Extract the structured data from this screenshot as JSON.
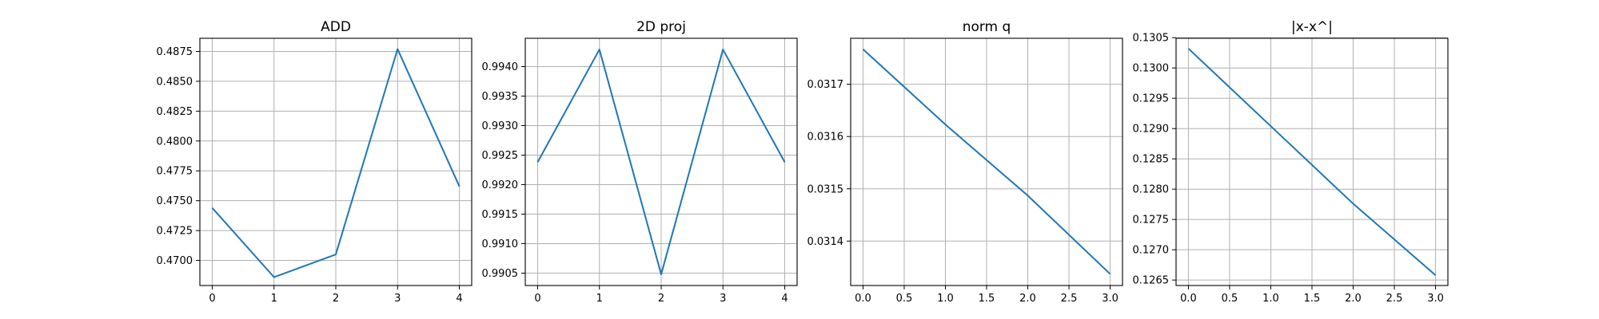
{
  "chart_data": [
    {
      "type": "line",
      "title": "ADD",
      "xlabel": "",
      "ylabel": "",
      "grid": true,
      "x": [
        0,
        1,
        2,
        3,
        4
      ],
      "series": [
        {
          "values": [
            0.4744,
            0.4686,
            0.4705,
            0.4877,
            0.4762
          ]
        }
      ],
      "xlim": [
        -0.2,
        4.2
      ],
      "ylim": [
        0.4679,
        0.4886
      ],
      "xticks": [
        0,
        1,
        2,
        3,
        4
      ],
      "xtick_labels": [
        "0",
        "1",
        "2",
        "3",
        "4"
      ],
      "yticks": [
        0.47,
        0.4725,
        0.475,
        0.4775,
        0.48,
        0.4825,
        0.485,
        0.4875
      ],
      "ytick_labels": [
        "0.4700",
        "0.4725",
        "0.4750",
        "0.4775",
        "0.4800",
        "0.4825",
        "0.4850",
        "0.4875"
      ]
    },
    {
      "type": "line",
      "title": "2D proj",
      "xlabel": "",
      "ylabel": "",
      "grid": true,
      "x": [
        0,
        1,
        2,
        3,
        4
      ],
      "series": [
        {
          "values": [
            0.99238,
            0.99429,
            0.99048,
            0.99429,
            0.99238
          ]
        }
      ],
      "xlim": [
        -0.2,
        4.2
      ],
      "ylim": [
        0.99029,
        0.99448
      ],
      "xticks": [
        0,
        1,
        2,
        3,
        4
      ],
      "xtick_labels": [
        "0",
        "1",
        "2",
        "3",
        "4"
      ],
      "yticks": [
        0.9905,
        0.991,
        0.9915,
        0.992,
        0.9925,
        0.993,
        0.9935,
        0.994
      ],
      "ytick_labels": [
        "0.9905",
        "0.9910",
        "0.9915",
        "0.9920",
        "0.9925",
        "0.9930",
        "0.9935",
        "0.9940"
      ]
    },
    {
      "type": "line",
      "title": "norm q",
      "xlabel": "",
      "ylabel": "",
      "grid": true,
      "x": [
        0,
        1,
        2,
        3
      ],
      "series": [
        {
          "values": [
            0.031767,
            0.031623,
            0.031487,
            0.031337
          ]
        }
      ],
      "xlim": [
        -0.15,
        3.15
      ],
      "ylim": [
        0.031315,
        0.031788
      ],
      "xticks": [
        0,
        0.5,
        1,
        1.5,
        2,
        2.5,
        3
      ],
      "xtick_labels": [
        "0.0",
        "0.5",
        "1.0",
        "1.5",
        "2.0",
        "2.5",
        "3.0"
      ],
      "yticks": [
        0.0314,
        0.0315,
        0.0316,
        0.0317
      ],
      "ytick_labels": [
        "0.0314",
        "0.0315",
        "0.0316",
        "0.0317"
      ]
    },
    {
      "type": "line",
      "title": "|x-x^|",
      "xlabel": "",
      "ylabel": "",
      "grid": true,
      "x": [
        0,
        1,
        2,
        3
      ],
      "series": [
        {
          "values": [
            0.13032,
            0.12904,
            0.12776,
            0.12658
          ]
        }
      ],
      "xlim": [
        -0.15,
        3.15
      ],
      "ylim": [
        0.12641,
        0.13049
      ],
      "xticks": [
        0,
        0.5,
        1,
        1.5,
        2,
        2.5,
        3
      ],
      "xtick_labels": [
        "0.0",
        "0.5",
        "1.0",
        "1.5",
        "2.0",
        "2.5",
        "3.0"
      ],
      "yticks": [
        0.1265,
        0.127,
        0.1275,
        0.128,
        0.1285,
        0.129,
        0.1295,
        0.13,
        0.1305
      ],
      "ytick_labels": [
        "0.1265",
        "0.1270",
        "0.1275",
        "0.1280",
        "0.1285",
        "0.1290",
        "0.1295",
        "0.1300",
        "0.1305"
      ]
    }
  ],
  "colors": {
    "line": "#1f77b4",
    "grid": "#b0b0b0",
    "axes": "#000000"
  }
}
